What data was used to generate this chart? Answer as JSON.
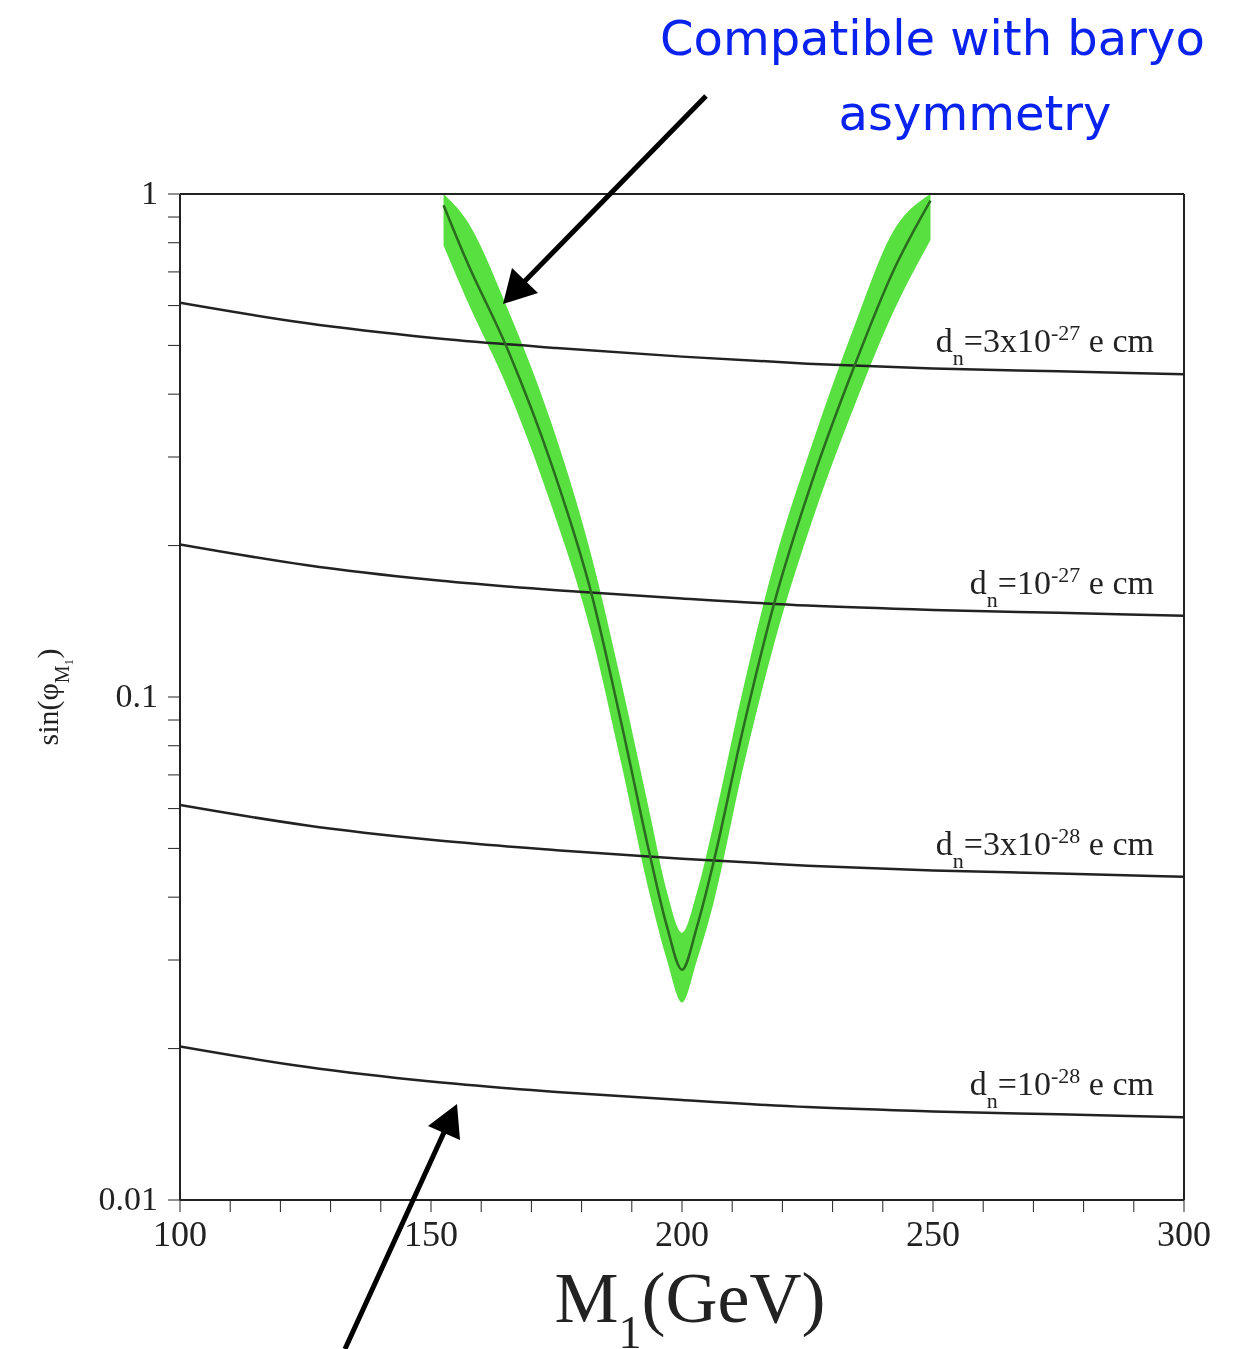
{
  "chart_data": {
    "type": "line",
    "xlabel": "M$_{1}$(GeV)",
    "ylabel": "sin(φ$_{M₁}$)",
    "xlim": [
      100,
      300
    ],
    "xticks": [
      100,
      {
        "value": 110,
        "label": null
      },
      {
        "value": 120,
        "label": null
      },
      {
        "value": 130,
        "label": null
      },
      {
        "value": 140,
        "label": null
      },
      150,
      {
        "value": 160,
        "label": null
      },
      {
        "value": 170,
        "label": null
      },
      {
        "value": 180,
        "label": null
      },
      {
        "value": 190,
        "label": null
      },
      200,
      {
        "value": 210,
        "label": null
      },
      {
        "value": 220,
        "label": null
      },
      {
        "value": 230,
        "label": null
      },
      {
        "value": 240,
        "label": null
      },
      250,
      {
        "value": 260,
        "label": null
      },
      {
        "value": 270,
        "label": null
      },
      {
        "value": 280,
        "label": null
      },
      {
        "value": 290,
        "label": null
      },
      300
    ],
    "ylim": [
      0.01,
      1
    ],
    "yticks": [
      0.01,
      {
        "value": 0.02,
        "label": null
      },
      {
        "value": 0.03,
        "label": null
      },
      {
        "value": 0.04,
        "label": null
      },
      {
        "value": 0.05,
        "label": null
      },
      {
        "value": 0.06,
        "label": null
      },
      {
        "value": 0.07,
        "label": null
      },
      {
        "value": 0.08,
        "label": null
      },
      {
        "value": 0.09,
        "label": null
      },
      0.1,
      {
        "value": 0.2,
        "label": null
      },
      {
        "value": 0.3,
        "label": null
      },
      {
        "value": 0.4,
        "label": null
      },
      {
        "value": 0.5,
        "label": null
      },
      {
        "value": 0.6,
        "label": null
      },
      {
        "value": 0.7,
        "label": null
      },
      {
        "value": 0.8,
        "label": null
      },
      {
        "value": 0.9,
        "label": null
      },
      1
    ],
    "log": "y",
    "grid": false,
    "legend": false,
    "marker": "none",
    "line_style": "solid",
    "series": [
      {
        "name": "d$_{n}$=3x10$^{-27}$ e cm",
        "color": "#222222",
        "x": [
          100,
          125,
          150,
          175,
          200,
          225,
          250,
          275,
          300
        ],
        "values": [
          0.608,
          0.554,
          0.518,
          0.494,
          0.475,
          0.46,
          0.45,
          0.444,
          0.438
        ]
      },
      {
        "name": "d$_{n}$=10$^{-27}$ e cm",
        "color": "#222222",
        "x": [
          100,
          125,
          150,
          175,
          200,
          225,
          250,
          275,
          300
        ],
        "values": [
          0.201,
          0.183,
          0.171,
          0.163,
          0.157,
          0.152,
          0.149,
          0.147,
          0.145
        ]
      },
      {
        "name": "d$_{n}$=3x10$^{-28}$ e cm",
        "color": "#222222",
        "x": [
          100,
          125,
          150,
          175,
          200,
          225,
          250,
          275,
          300
        ],
        "values": [
          0.061,
          0.0556,
          0.052,
          0.0496,
          0.0477,
          0.0462,
          0.0452,
          0.0446,
          0.0439
        ]
      },
      {
        "name": "d$_{n}$=10$^{-28}$ e cm",
        "color": "#222222",
        "x": [
          100,
          125,
          150,
          175,
          200,
          225,
          250,
          275,
          300
        ],
        "values": [
          0.0202,
          0.0184,
          0.0172,
          0.0164,
          0.0158,
          0.0153,
          0.015,
          0.0148,
          0.0146
        ]
      },
      {
        "color": "#2a6b1f",
        "x": [
          152.5,
          157,
          165.3,
          174,
          182,
          188,
          193.7,
          197,
          200,
          203,
          206.3,
          212,
          218.4,
          226,
          234.3,
          242,
          249.5
        ],
        "values": [
          0.95,
          0.74,
          0.49,
          0.29,
          0.16,
          0.088,
          0.048,
          0.035,
          0.0287,
          0.035,
          0.047,
          0.085,
          0.154,
          0.27,
          0.454,
          0.7,
          0.97
        ],
        "lower": [
          0.79,
          0.62,
          0.41,
          0.24,
          0.133,
          0.073,
          0.04,
          0.03,
          0.0247,
          0.03,
          0.039,
          0.071,
          0.128,
          0.225,
          0.378,
          0.58,
          0.81
        ],
        "upper": [
          1,
          0.89,
          0.59,
          0.35,
          0.19,
          0.106,
          0.058,
          0.041,
          0.034,
          0.041,
          0.056,
          0.102,
          0.185,
          0.32,
          0.545,
          0.84,
          1
        ]
      }
    ],
    "annotations": [
      "Compatible with baryo\nasymmetry"
    ]
  }
}
